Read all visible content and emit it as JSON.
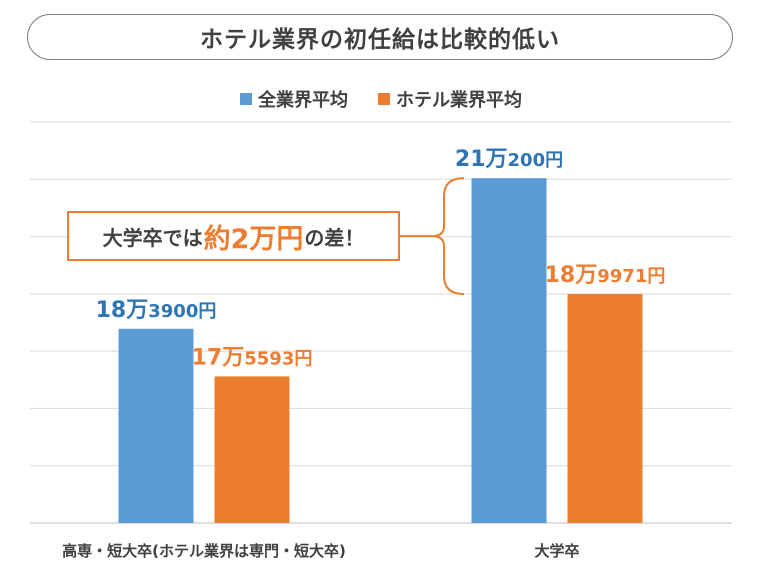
{
  "title": "ホテル業界の初任給は比較的低い",
  "callout": {
    "prefix": "大学卒では",
    "highlight": "約2万円",
    "suffix": "の差！"
  },
  "colors": {
    "all_industry": "#5b9bd5",
    "hotel": "#ed7d31"
  },
  "chart_data": {
    "type": "bar",
    "categories": [
      "高専・短大卒(ホテル業界は専門・短大卒)",
      "大学卒"
    ],
    "series": [
      {
        "name": "全業界平均",
        "values": [
          183900,
          210200
        ],
        "labels": [
          "18万3900円",
          "21万200円"
        ]
      },
      {
        "name": "ホテル業界平均",
        "values": [
          175593,
          189971
        ],
        "labels": [
          "17万5593円",
          "18万9971円"
        ]
      }
    ],
    "ylim": [
      150000,
      220000
    ],
    "grid": true,
    "legend": "top"
  }
}
